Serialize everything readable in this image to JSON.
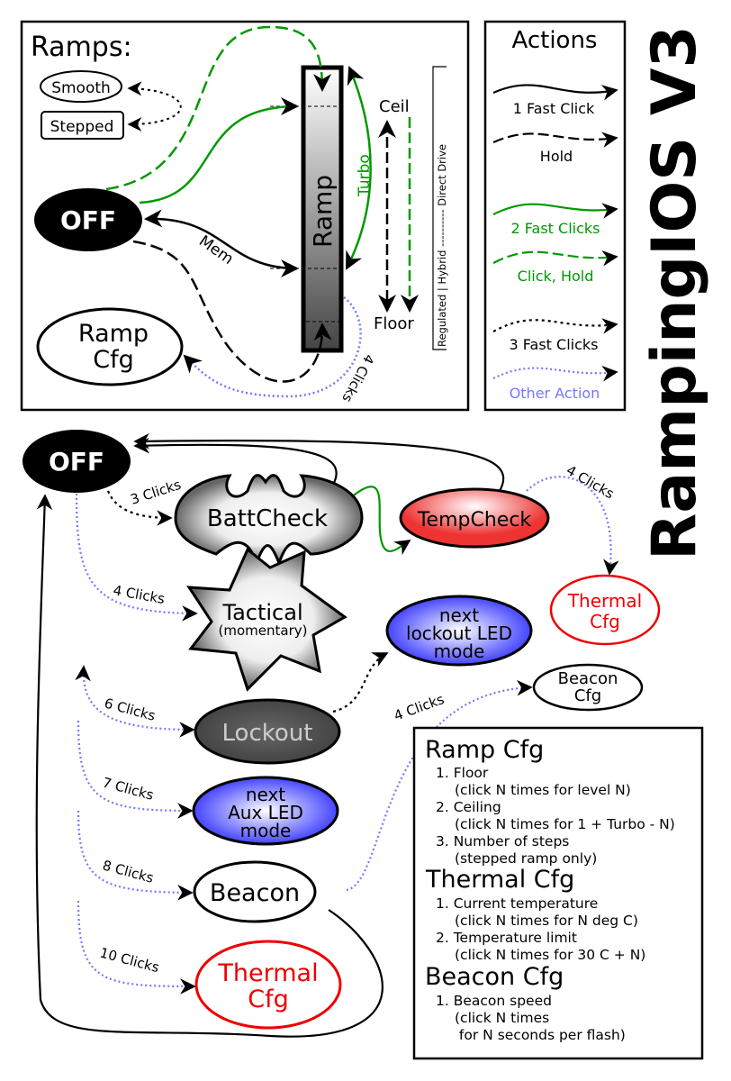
{
  "title": "RampingIOS V3",
  "colors": {
    "green": "#009900",
    "blue": "#7777ff",
    "red": "#ee0000",
    "black": "#000000"
  },
  "ramps_panel": {
    "heading": "Ramps:",
    "smooth": "Smooth",
    "stepped": "Stepped",
    "off": "OFF",
    "ramp": "Ramp",
    "ramp_cfg": [
      "Ramp",
      "Cfg"
    ],
    "mem": "Mem",
    "turbo": "Turbo",
    "ceil": "Ceil",
    "floor": "Floor",
    "four_clicks": "4 Clicks",
    "power_scale": "Regulated | Hybrid ---------- Direct Drive"
  },
  "actions_panel": {
    "heading": "Actions",
    "items": [
      {
        "label": "1 Fast Click",
        "style": "solid",
        "color": "#000000"
      },
      {
        "label": "Hold",
        "style": "dashed",
        "color": "#000000"
      },
      {
        "label": "2 Fast Clicks",
        "style": "solid",
        "color": "#009900"
      },
      {
        "label": "Click, Hold",
        "style": "dashed",
        "color": "#009900"
      },
      {
        "label": "3 Fast Clicks",
        "style": "dotted",
        "color": "#000000"
      },
      {
        "label": "Other Action",
        "style": "dotted",
        "color": "#7777ff"
      }
    ]
  },
  "states": {
    "off": "OFF",
    "battcheck": "BattCheck",
    "tempcheck": "TempCheck",
    "thermal_cfg_top": [
      "Thermal",
      "Cfg"
    ],
    "tactical": [
      "Tactical",
      "(momentary)"
    ],
    "lockout_led": [
      "next",
      "lockout LED",
      "mode"
    ],
    "beacon_cfg": [
      "Beacon",
      "Cfg"
    ],
    "lockout": "Lockout",
    "aux_led": [
      "next",
      "Aux LED",
      "mode"
    ],
    "beacon": "Beacon",
    "thermal_cfg_bottom": [
      "Thermal",
      "Cfg"
    ]
  },
  "edge_labels": {
    "battcheck": "3 Clicks",
    "tempcheck_thermal": "4 Clicks",
    "tactical": "4 Clicks",
    "lockout": "6 Clicks",
    "aux": "7 Clicks",
    "beacon": "8 Clicks",
    "beacon_cfg": "4 Clicks",
    "thermal": "10 Clicks"
  },
  "config_legend": {
    "sections": [
      {
        "heading": "Ramp Cfg",
        "lines": [
          "1. Floor",
          "(click N times for level N)",
          "2. Ceiling",
          "(click N times for 1 + Turbo - N)",
          "3. Number of steps",
          "(stepped ramp only)"
        ]
      },
      {
        "heading": "Thermal Cfg",
        "lines": [
          "1. Current temperature",
          "(click N times for N deg C)",
          "2. Temperature limit",
          "(click N times for 30 C + N)"
        ]
      },
      {
        "heading": "Beacon Cfg",
        "lines": [
          "1. Beacon speed",
          "(click N times",
          " for N seconds per flash)"
        ]
      }
    ]
  }
}
